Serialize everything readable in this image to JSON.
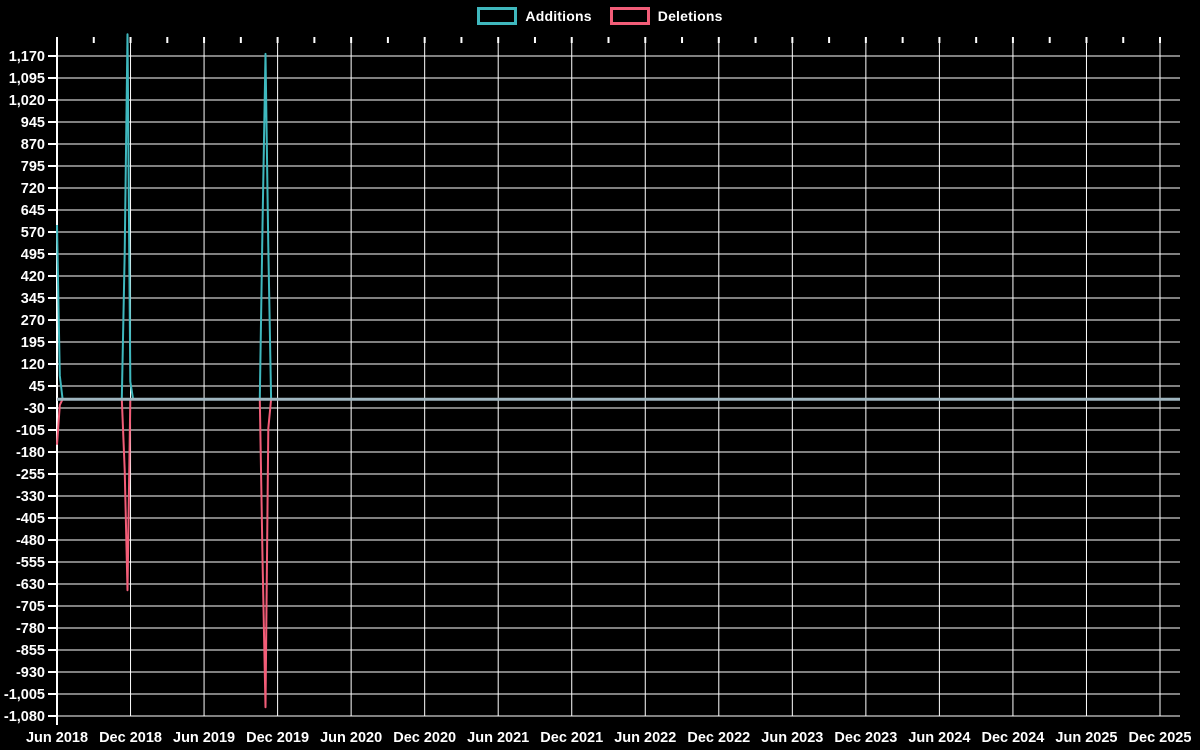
{
  "legend": {
    "position": "top-center",
    "items": [
      {
        "label": "Additions",
        "swatch_color": "#3fb8be"
      },
      {
        "label": "Deletions",
        "swatch_color": "#f25d78"
      }
    ]
  },
  "colors": {
    "background": "#000000",
    "grid": "#ffffff",
    "text": "#ffffff",
    "additions": "#3fb8be",
    "deletions": "#f25d78",
    "zero_overlap_line": "#9fb6c0"
  },
  "chart_data": {
    "type": "line",
    "title": "",
    "legend_position": "top",
    "grid": true,
    "x_axis": {
      "unit": "months since Jun 2018",
      "tick_labels": [
        "Jun 2018",
        "Dec 2018",
        "Jun 2019",
        "Dec 2019",
        "Jun 2020",
        "Dec 2020",
        "Jun 2021",
        "Dec 2021",
        "Jun 2022",
        "Dec 2022",
        "Jun 2023",
        "Dec 2023",
        "Jun 2024",
        "Dec 2024",
        "Jun 2025",
        "Dec 2025"
      ],
      "minor_tick_every_months": 3
    },
    "y_axis": {
      "min": -1080,
      "max": 1170,
      "step": 75,
      "tick_values": [
        1170,
        1095,
        1020,
        945,
        870,
        795,
        720,
        645,
        570,
        495,
        420,
        345,
        270,
        195,
        120,
        45,
        -30,
        -105,
        -180,
        -255,
        -330,
        -405,
        -480,
        -555,
        -630,
        -705,
        -780,
        -855,
        -930,
        -1005,
        -1080
      ],
      "tick_labels": [
        "1,170",
        "1,095",
        "1,020",
        "945",
        "870",
        "795",
        "720",
        "645",
        "570",
        "495",
        "420",
        "345",
        "270",
        "195",
        "120",
        "45",
        "-30",
        "-105",
        "-180",
        "-255",
        "-330",
        "-405",
        "-480",
        "-555",
        "-630",
        "-705",
        "-780",
        "-855",
        "-930",
        "-1,005",
        "-1,080"
      ]
    },
    "series": [
      {
        "name": "Additions",
        "color": "#3fb8be",
        "points_note": "x = months after Jun 2018 (weekly data, 0 everywhere except spikes)",
        "points": [
          [
            0,
            594
          ],
          [
            0.23,
            80
          ],
          [
            0.46,
            0
          ],
          [
            5.29,
            0
          ],
          [
            5.52,
            500
          ],
          [
            5.75,
            1244
          ],
          [
            5.98,
            60
          ],
          [
            6.21,
            0
          ],
          [
            16.55,
            0
          ],
          [
            16.78,
            610
          ],
          [
            17.01,
            1177
          ],
          [
            17.24,
            519
          ],
          [
            17.47,
            0
          ],
          [
            91.6,
            0
          ]
        ]
      },
      {
        "name": "Deletions",
        "color": "#f25d78",
        "points_note": "x = months after Jun 2018 (weekly data, 0 everywhere except spikes)",
        "points": [
          [
            0,
            -155
          ],
          [
            0.23,
            -20
          ],
          [
            0.46,
            0
          ],
          [
            5.29,
            0
          ],
          [
            5.52,
            -241
          ],
          [
            5.75,
            -651
          ],
          [
            5.98,
            0
          ],
          [
            16.55,
            0
          ],
          [
            16.78,
            -559
          ],
          [
            17.01,
            -1050
          ],
          [
            17.24,
            -100
          ],
          [
            17.47,
            0
          ],
          [
            91.6,
            0
          ]
        ]
      }
    ],
    "zero_line": {
      "value": 0,
      "color": "#9fb6c0",
      "note": "flat overlap of both series at 0 across full width"
    }
  }
}
